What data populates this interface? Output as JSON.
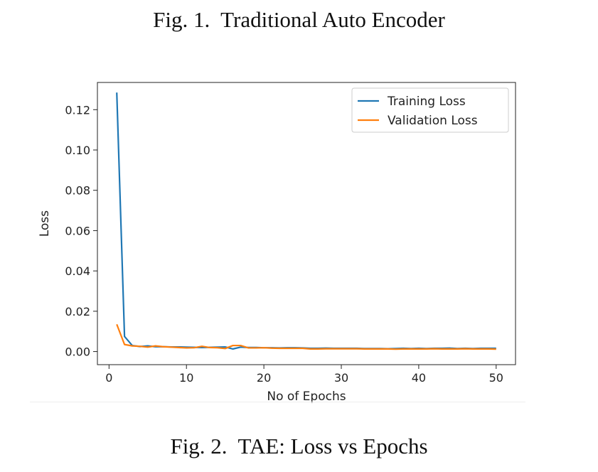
{
  "captions": {
    "top": "Fig. 1.  Traditional Auto Encoder",
    "bottom": "Fig. 2.  TAE: Loss vs Epochs"
  },
  "chart_data": {
    "type": "line",
    "title": "",
    "xlabel": "No of Epochs",
    "ylabel": "Loss",
    "xlim": [
      -1.5,
      52.5
    ],
    "ylim": [
      -0.0065,
      0.1335
    ],
    "xticks": [
      0,
      10,
      20,
      30,
      40,
      50
    ],
    "yticks": [
      0.0,
      0.02,
      0.04,
      0.06,
      0.08,
      0.1,
      0.12
    ],
    "ytick_labels": [
      "0.00",
      "0.02",
      "0.04",
      "0.06",
      "0.08",
      "0.10",
      "0.12"
    ],
    "grid": false,
    "legend_position": "upper right",
    "x": [
      1,
      2,
      3,
      4,
      5,
      6,
      7,
      8,
      9,
      10,
      11,
      12,
      13,
      14,
      15,
      16,
      17,
      18,
      19,
      20,
      21,
      22,
      23,
      24,
      25,
      26,
      27,
      28,
      29,
      30,
      31,
      32,
      33,
      34,
      35,
      36,
      37,
      38,
      39,
      40,
      41,
      42,
      43,
      44,
      45,
      46,
      47,
      48,
      49,
      50
    ],
    "series": [
      {
        "name": "Training Loss",
        "color": "#1f77b4",
        "values": [
          0.1285,
          0.0075,
          0.003,
          0.0025,
          0.0028,
          0.0024,
          0.0024,
          0.0023,
          0.0023,
          0.0022,
          0.0021,
          0.002,
          0.0021,
          0.0022,
          0.0023,
          0.0013,
          0.0022,
          0.002,
          0.002,
          0.0019,
          0.0019,
          0.0018,
          0.0019,
          0.0019,
          0.0018,
          0.0016,
          0.0016,
          0.0017,
          0.0016,
          0.0016,
          0.0016,
          0.0016,
          0.0015,
          0.0015,
          0.0015,
          0.0014,
          0.0015,
          0.0016,
          0.0015,
          0.0016,
          0.0015,
          0.0016,
          0.0016,
          0.0017,
          0.0015,
          0.0016,
          0.0015,
          0.0016,
          0.0016,
          0.0016
        ]
      },
      {
        "name": "Validation Loss",
        "color": "#ff7f0e",
        "values": [
          0.0135,
          0.0035,
          0.0028,
          0.0026,
          0.0022,
          0.0028,
          0.0024,
          0.0022,
          0.002,
          0.0018,
          0.0019,
          0.0026,
          0.002,
          0.0019,
          0.0015,
          0.003,
          0.003,
          0.0018,
          0.0018,
          0.0019,
          0.0017,
          0.0016,
          0.0016,
          0.0016,
          0.0016,
          0.0013,
          0.0013,
          0.0014,
          0.0014,
          0.0014,
          0.0014,
          0.0014,
          0.0013,
          0.0013,
          0.0013,
          0.0013,
          0.0012,
          0.0013,
          0.0013,
          0.0013,
          0.0013,
          0.0014,
          0.0013,
          0.0013,
          0.0013,
          0.0014,
          0.0013,
          0.0013,
          0.0013,
          0.0012
        ]
      }
    ]
  }
}
